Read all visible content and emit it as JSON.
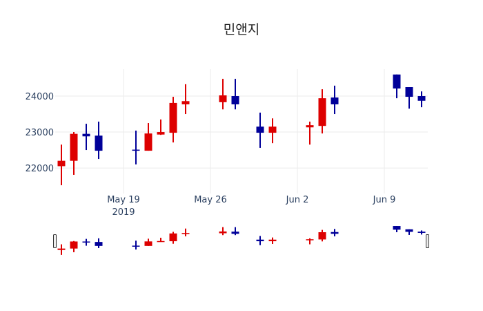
{
  "chart_data": {
    "type": "candlestick",
    "title": "민앤지",
    "xlabel": "",
    "ylabel": "",
    "ylim": [
      21290,
      24750
    ],
    "y_ticks": [
      22000,
      23000,
      24000
    ],
    "x_ticks": [
      {
        "date": "2019-05-19",
        "label": "May 19",
        "sublabel": "2019"
      },
      {
        "date": "2019-05-26",
        "label": "May 26",
        "sublabel": ""
      },
      {
        "date": "2019-06-02",
        "label": "Jun 2",
        "sublabel": ""
      },
      {
        "date": "2019-06-09",
        "label": "Jun 9",
        "sublabel": ""
      }
    ],
    "grid": true,
    "increasing_color": "#dd0000",
    "decreasing_color": "#000099",
    "rangeslider": true,
    "candles": [
      {
        "date": "2019-05-14",
        "open": 22050,
        "high": 22650,
        "low": 21520,
        "close": 22200
      },
      {
        "date": "2019-05-15",
        "open": 22200,
        "high": 23000,
        "low": 21810,
        "close": 22950
      },
      {
        "date": "2019-05-16",
        "open": 22950,
        "high": 23230,
        "low": 22500,
        "close": 22880
      },
      {
        "date": "2019-05-17",
        "open": 22900,
        "high": 23290,
        "low": 22250,
        "close": 22480
      },
      {
        "date": "2019-05-20",
        "open": 22510,
        "high": 23040,
        "low": 22100,
        "close": 22480
      },
      {
        "date": "2019-05-21",
        "open": 22480,
        "high": 23250,
        "low": 22480,
        "close": 22960
      },
      {
        "date": "2019-05-22",
        "open": 22930,
        "high": 23350,
        "low": 22920,
        "close": 23000
      },
      {
        "date": "2019-05-23",
        "open": 22980,
        "high": 23980,
        "low": 22710,
        "close": 23810
      },
      {
        "date": "2019-05-24",
        "open": 23770,
        "high": 24330,
        "low": 23500,
        "close": 23860
      },
      {
        "date": "2019-05-27",
        "open": 23830,
        "high": 24480,
        "low": 23630,
        "close": 24020
      },
      {
        "date": "2019-05-28",
        "open": 24000,
        "high": 24480,
        "low": 23630,
        "close": 23770
      },
      {
        "date": "2019-05-30",
        "open": 23150,
        "high": 23540,
        "low": 22560,
        "close": 22980
      },
      {
        "date": "2019-05-31",
        "open": 22980,
        "high": 23380,
        "low": 22690,
        "close": 23150
      },
      {
        "date": "2019-06-03",
        "open": 23130,
        "high": 23290,
        "low": 22650,
        "close": 23190
      },
      {
        "date": "2019-06-04",
        "open": 23170,
        "high": 24190,
        "low": 22960,
        "close": 23940
      },
      {
        "date": "2019-06-05",
        "open": 23960,
        "high": 24290,
        "low": 23500,
        "close": 23770
      },
      {
        "date": "2019-06-10",
        "open": 24600,
        "high": 24600,
        "low": 23940,
        "close": 24210
      },
      {
        "date": "2019-06-11",
        "open": 24250,
        "high": 24250,
        "low": 23650,
        "close": 23980
      },
      {
        "date": "2019-06-12",
        "open": 24000,
        "high": 24130,
        "low": 23690,
        "close": 23870
      }
    ]
  }
}
